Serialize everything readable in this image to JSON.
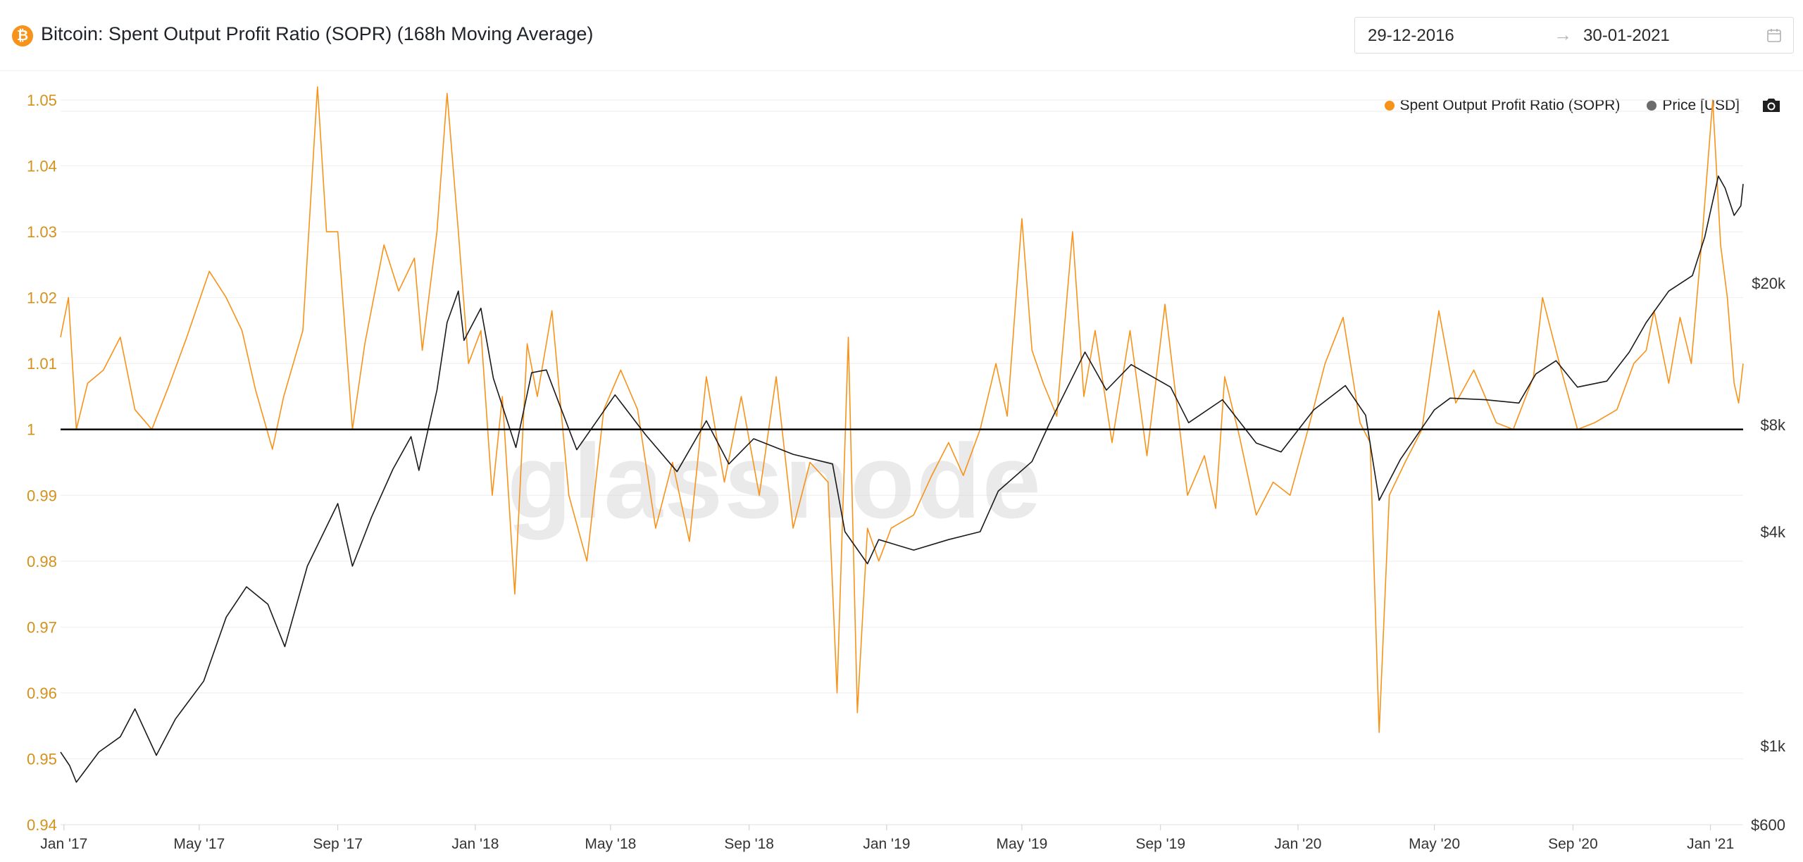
{
  "header": {
    "icon_letter": "₿",
    "title": "Bitcoin: Spent Output Profit Ratio (SOPR) (168h Moving Average)",
    "date_start": "29-12-2016",
    "date_arrow": "→",
    "date_end": "30-01-2021"
  },
  "icons": {
    "bitcoin": "bitcoin-icon",
    "calendar": "calendar-icon",
    "camera": "camera-icon"
  },
  "colors": {
    "sopr": "#f7931a",
    "price": "#1a1a1a",
    "baseline": "#000000"
  },
  "chart_data": {
    "type": "line",
    "watermark": "glassnode",
    "x_ticks": [
      "Jan '17",
      "May '17",
      "Sep '17",
      "Jan '18",
      "May '18",
      "Sep '18",
      "Jan '19",
      "May '19",
      "Sep '19",
      "Jan '20",
      "May '20",
      "Sep '20",
      "Jan '21"
    ],
    "x_range": [
      "2016-12-29",
      "2021-01-30"
    ],
    "y_left": {
      "ticks": [
        "1.05",
        "1.04",
        "1.03",
        "1.02",
        "1.01",
        "1",
        "0.99",
        "0.98",
        "0.97",
        "0.96",
        "0.95",
        "0.94"
      ],
      "range": [
        0.94,
        1.05
      ],
      "color": "#d4911c"
    },
    "y_right": {
      "scale": "log",
      "ticks": [
        {
          "label": "$20k",
          "value": 20000
        },
        {
          "label": "$8k",
          "value": 8000
        },
        {
          "label": "$4k",
          "value": 4000
        },
        {
          "label": "$1k",
          "value": 1000
        },
        {
          "label": "$600",
          "value": 600
        }
      ]
    },
    "reference_line": 1,
    "series": [
      {
        "name": "Spent Output Profit Ratio (SOPR)",
        "axis": "left",
        "points": [
          [
            "2016-12-29",
            1.014
          ],
          [
            "2017-01-05",
            1.02
          ],
          [
            "2017-01-12",
            1.0
          ],
          [
            "2017-01-22",
            1.007
          ],
          [
            "2017-02-05",
            1.009
          ],
          [
            "2017-02-20",
            1.014
          ],
          [
            "2017-03-05",
            1.003
          ],
          [
            "2017-03-20",
            1.0
          ],
          [
            "2017-04-05",
            1.007
          ],
          [
            "2017-04-20",
            1.014
          ],
          [
            "2017-05-10",
            1.024
          ],
          [
            "2017-05-25",
            1.02
          ],
          [
            "2017-06-08",
            1.015
          ],
          [
            "2017-06-20",
            1.006
          ],
          [
            "2017-07-05",
            0.997
          ],
          [
            "2017-07-15",
            1.005
          ],
          [
            "2017-08-01",
            1.015
          ],
          [
            "2017-08-14",
            1.052
          ],
          [
            "2017-08-22",
            1.03
          ],
          [
            "2017-09-01",
            1.03
          ],
          [
            "2017-09-14",
            1.0
          ],
          [
            "2017-09-25",
            1.013
          ],
          [
            "2017-10-12",
            1.028
          ],
          [
            "2017-10-25",
            1.021
          ],
          [
            "2017-11-08",
            1.026
          ],
          [
            "2017-11-15",
            1.012
          ],
          [
            "2017-11-28",
            1.03
          ],
          [
            "2017-12-07",
            1.051
          ],
          [
            "2017-12-17",
            1.03
          ],
          [
            "2017-12-26",
            1.01
          ],
          [
            "2018-01-06",
            1.015
          ],
          [
            "2018-01-16",
            0.99
          ],
          [
            "2018-01-25",
            1.005
          ],
          [
            "2018-02-05",
            0.975
          ],
          [
            "2018-02-16",
            1.013
          ],
          [
            "2018-02-25",
            1.005
          ],
          [
            "2018-03-10",
            1.018
          ],
          [
            "2018-03-25",
            0.99
          ],
          [
            "2018-04-10",
            0.98
          ],
          [
            "2018-04-25",
            1.003
          ],
          [
            "2018-05-10",
            1.009
          ],
          [
            "2018-05-25",
            1.003
          ],
          [
            "2018-06-10",
            0.985
          ],
          [
            "2018-06-25",
            0.995
          ],
          [
            "2018-07-10",
            0.983
          ],
          [
            "2018-07-25",
            1.008
          ],
          [
            "2018-08-10",
            0.992
          ],
          [
            "2018-08-25",
            1.005
          ],
          [
            "2018-09-10",
            0.99
          ],
          [
            "2018-09-25",
            1.008
          ],
          [
            "2018-10-10",
            0.985
          ],
          [
            "2018-10-25",
            0.995
          ],
          [
            "2018-11-10",
            0.992
          ],
          [
            "2018-11-18",
            0.96
          ],
          [
            "2018-11-28",
            1.014
          ],
          [
            "2018-12-06",
            0.957
          ],
          [
            "2018-12-15",
            0.985
          ],
          [
            "2018-12-25",
            0.98
          ],
          [
            "2019-01-05",
            0.985
          ],
          [
            "2019-01-25",
            0.987
          ],
          [
            "2019-02-10",
            0.993
          ],
          [
            "2019-02-25",
            0.998
          ],
          [
            "2019-03-10",
            0.993
          ],
          [
            "2019-03-25",
            1.0
          ],
          [
            "2019-04-08",
            1.01
          ],
          [
            "2019-04-18",
            1.002
          ],
          [
            "2019-05-01",
            1.032
          ],
          [
            "2019-05-10",
            1.012
          ],
          [
            "2019-05-20",
            1.007
          ],
          [
            "2019-06-01",
            1.002
          ],
          [
            "2019-06-15",
            1.03
          ],
          [
            "2019-06-25",
            1.005
          ],
          [
            "2019-07-05",
            1.015
          ],
          [
            "2019-07-20",
            0.998
          ],
          [
            "2019-08-05",
            1.015
          ],
          [
            "2019-08-20",
            0.996
          ],
          [
            "2019-09-05",
            1.019
          ],
          [
            "2019-09-25",
            0.99
          ],
          [
            "2019-10-10",
            0.996
          ],
          [
            "2019-10-20",
            0.988
          ],
          [
            "2019-10-28",
            1.008
          ],
          [
            "2019-11-10",
            0.999
          ],
          [
            "2019-11-25",
            0.987
          ],
          [
            "2019-12-10",
            0.992
          ],
          [
            "2019-12-25",
            0.99
          ],
          [
            "2020-01-10",
            1.0
          ],
          [
            "2020-01-25",
            1.01
          ],
          [
            "2020-02-10",
            1.017
          ],
          [
            "2020-02-25",
            1.001
          ],
          [
            "2020-03-05",
            0.998
          ],
          [
            "2020-03-13",
            0.954
          ],
          [
            "2020-03-22",
            0.99
          ],
          [
            "2020-04-05",
            0.995
          ],
          [
            "2020-04-20",
            1.0
          ],
          [
            "2020-05-05",
            1.018
          ],
          [
            "2020-05-20",
            1.004
          ],
          [
            "2020-06-05",
            1.009
          ],
          [
            "2020-06-25",
            1.001
          ],
          [
            "2020-07-10",
            1.0
          ],
          [
            "2020-07-28",
            1.008
          ],
          [
            "2020-08-05",
            1.02
          ],
          [
            "2020-08-20",
            1.01
          ],
          [
            "2020-09-05",
            1.0
          ],
          [
            "2020-09-20",
            1.001
          ],
          [
            "2020-10-10",
            1.003
          ],
          [
            "2020-10-25",
            1.01
          ],
          [
            "2020-11-05",
            1.012
          ],
          [
            "2020-11-12",
            1.018
          ],
          [
            "2020-11-25",
            1.007
          ],
          [
            "2020-12-05",
            1.017
          ],
          [
            "2020-12-15",
            1.01
          ],
          [
            "2020-12-25",
            1.03
          ],
          [
            "2021-01-03",
            1.05
          ],
          [
            "2021-01-10",
            1.028
          ],
          [
            "2021-01-16",
            1.02
          ],
          [
            "2021-01-22",
            1.007
          ],
          [
            "2021-01-26",
            1.004
          ],
          [
            "2021-01-30",
            1.01
          ]
        ]
      },
      {
        "name": "Price [USD]",
        "axis": "right",
        "points": [
          [
            "2016-12-29",
            960
          ],
          [
            "2017-01-06",
            880
          ],
          [
            "2017-01-12",
            790
          ],
          [
            "2017-02-01",
            960
          ],
          [
            "2017-02-20",
            1060
          ],
          [
            "2017-03-05",
            1270
          ],
          [
            "2017-03-24",
            940
          ],
          [
            "2017-04-10",
            1190
          ],
          [
            "2017-05-05",
            1520
          ],
          [
            "2017-05-25",
            2300
          ],
          [
            "2017-06-12",
            2800
          ],
          [
            "2017-07-01",
            2500
          ],
          [
            "2017-07-16",
            1900
          ],
          [
            "2017-08-05",
            3200
          ],
          [
            "2017-09-01",
            4800
          ],
          [
            "2017-09-14",
            3200
          ],
          [
            "2017-10-01",
            4400
          ],
          [
            "2017-10-20",
            6000
          ],
          [
            "2017-11-05",
            7400
          ],
          [
            "2017-11-12",
            5950
          ],
          [
            "2017-11-28",
            10000
          ],
          [
            "2017-12-07",
            15500
          ],
          [
            "2017-12-17",
            19000
          ],
          [
            "2017-12-22",
            13800
          ],
          [
            "2018-01-06",
            17000
          ],
          [
            "2018-01-17",
            10800
          ],
          [
            "2018-02-06",
            6900
          ],
          [
            "2018-02-20",
            11200
          ],
          [
            "2018-03-05",
            11400
          ],
          [
            "2018-04-01",
            6800
          ],
          [
            "2018-05-05",
            9700
          ],
          [
            "2018-06-01",
            7500
          ],
          [
            "2018-06-29",
            5900
          ],
          [
            "2018-07-25",
            8200
          ],
          [
            "2018-08-14",
            6200
          ],
          [
            "2018-09-05",
            7300
          ],
          [
            "2018-10-10",
            6600
          ],
          [
            "2018-11-14",
            6200
          ],
          [
            "2018-11-25",
            4000
          ],
          [
            "2018-12-15",
            3250
          ],
          [
            "2018-12-25",
            3800
          ],
          [
            "2019-01-25",
            3550
          ],
          [
            "2019-02-25",
            3800
          ],
          [
            "2019-03-25",
            4000
          ],
          [
            "2019-04-10",
            5200
          ],
          [
            "2019-05-10",
            6300
          ],
          [
            "2019-05-25",
            8000
          ],
          [
            "2019-06-26",
            12800
          ],
          [
            "2019-07-15",
            10000
          ],
          [
            "2019-08-06",
            11800
          ],
          [
            "2019-09-10",
            10200
          ],
          [
            "2019-09-26",
            8100
          ],
          [
            "2019-10-26",
            9400
          ],
          [
            "2019-11-25",
            7100
          ],
          [
            "2019-12-17",
            6700
          ],
          [
            "2020-01-15",
            8800
          ],
          [
            "2020-02-12",
            10300
          ],
          [
            "2020-03-01",
            8500
          ],
          [
            "2020-03-13",
            4900
          ],
          [
            "2020-04-01",
            6400
          ],
          [
            "2020-05-01",
            8800
          ],
          [
            "2020-05-15",
            9500
          ],
          [
            "2020-06-15",
            9400
          ],
          [
            "2020-07-15",
            9200
          ],
          [
            "2020-07-30",
            11100
          ],
          [
            "2020-08-17",
            12100
          ],
          [
            "2020-09-05",
            10200
          ],
          [
            "2020-10-01",
            10600
          ],
          [
            "2020-10-21",
            12800
          ],
          [
            "2020-11-05",
            15500
          ],
          [
            "2020-11-25",
            19000
          ],
          [
            "2020-12-16",
            21000
          ],
          [
            "2020-12-27",
            27000
          ],
          [
            "2021-01-08",
            40000
          ],
          [
            "2021-01-14",
            37000
          ],
          [
            "2021-01-22",
            31000
          ],
          [
            "2021-01-28",
            33000
          ],
          [
            "2021-01-30",
            38000
          ]
        ]
      }
    ],
    "legend_position": "top-right"
  }
}
